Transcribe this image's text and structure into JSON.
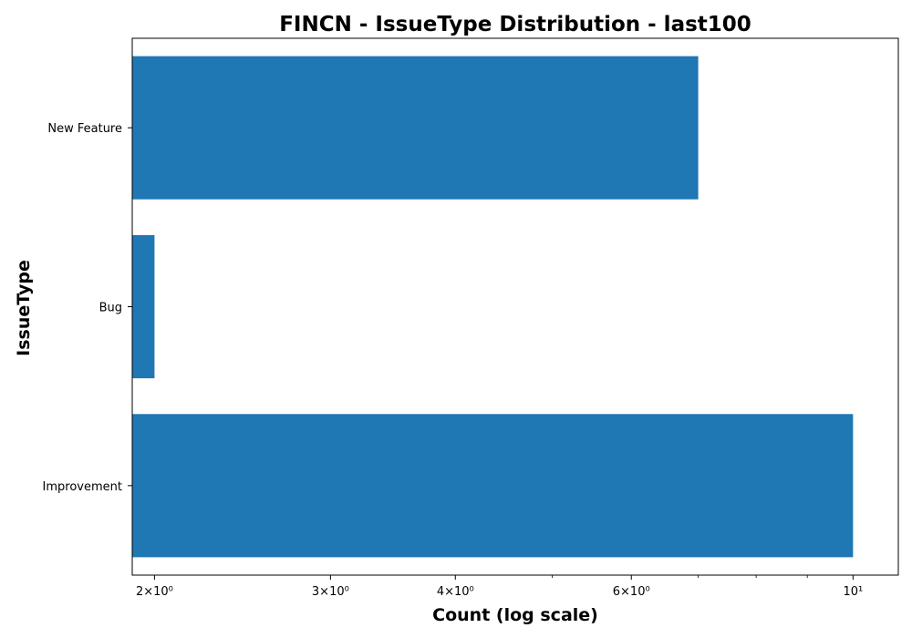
{
  "chart_data": {
    "type": "bar",
    "orientation": "horizontal",
    "title": "FINCN - IssueType Distribution - last100",
    "xlabel": "Count (log scale)",
    "ylabel": "IssueType",
    "x_scale": "log",
    "xlim": [
      1.9,
      11.1
    ],
    "categories": [
      "New Feature",
      "Bug",
      "Improvement"
    ],
    "values": [
      7,
      2,
      10
    ],
    "x_ticks": [
      {
        "value": 2,
        "label": "2×10⁰"
      },
      {
        "value": 3,
        "label": "3×10⁰"
      },
      {
        "value": 4,
        "label": "4×10⁰"
      },
      {
        "value": 6,
        "label": "6×10⁰"
      },
      {
        "value": 10,
        "label": "10¹"
      }
    ],
    "x_minor_ticks": [
      5,
      7,
      8,
      9
    ],
    "bar_color": "#1f77b4",
    "grid": false,
    "legend": "none"
  }
}
